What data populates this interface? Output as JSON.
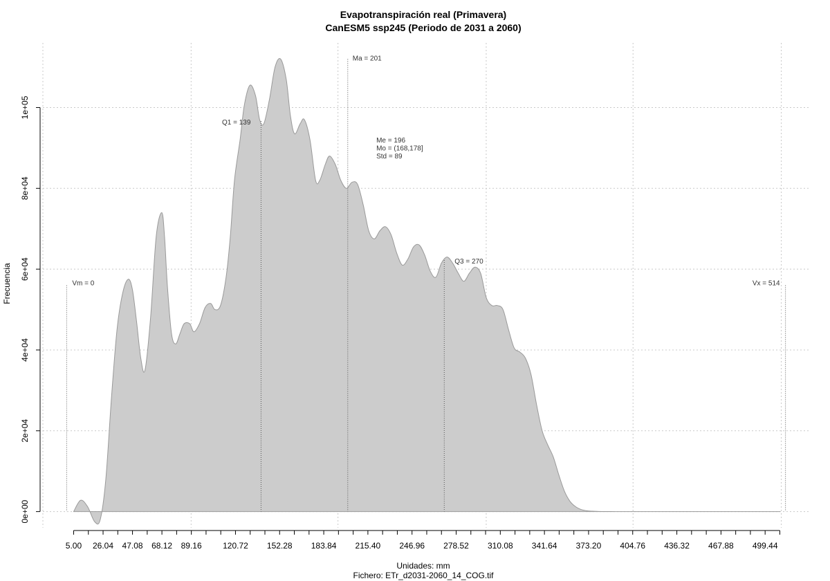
{
  "chart_data": {
    "type": "area",
    "title": "Evapotranspiración real (Primavera)",
    "subtitle": "CanESM5 ssp245 (Periodo de 2031 a 2060)",
    "xlabel": "Unidades: mm",
    "caption": "Fichero: ETr_d2031-2060_14_COG.tif",
    "ylabel": "Frecuencia",
    "xlim": [
      -17,
      531
    ],
    "ylim": [
      -4000,
      116000
    ],
    "grid": true,
    "colors": {
      "fill": "#cccccc",
      "stroke": "#999999"
    },
    "x_ticks": [
      5.0,
      15.52,
      26.04,
      36.56,
      47.08,
      57.6,
      68.12,
      78.64,
      89.16,
      99.68,
      110.2,
      120.72,
      131.24,
      141.76,
      152.28,
      162.8,
      173.32,
      183.84,
      194.36,
      204.88,
      215.4,
      225.92,
      236.44,
      246.96,
      257.48,
      268.0,
      278.52,
      289.04,
      299.56,
      310.08,
      320.6,
      331.12,
      341.64,
      352.16,
      362.68,
      373.2,
      383.72,
      394.24,
      404.76,
      415.28,
      425.8,
      436.32,
      446.84,
      457.36,
      467.88,
      478.4,
      488.92,
      499.44,
      509.96
    ],
    "x_tick_labels": [
      "5.00",
      "26.04",
      "47.08",
      "68.12",
      "89.16",
      "120.72",
      "152.28",
      "183.84",
      "215.40",
      "246.96",
      "278.52",
      "310.08",
      "341.64",
      "373.20",
      "404.76",
      "436.32",
      "467.88",
      "499.44"
    ],
    "x_tick_label_values": [
      5.0,
      26.04,
      47.08,
      68.12,
      89.16,
      120.72,
      152.28,
      183.84,
      215.4,
      246.96,
      278.52,
      310.08,
      341.64,
      373.2,
      404.76,
      436.32,
      467.88,
      499.44
    ],
    "x_grid": [
      -17,
      89,
      194,
      300,
      405,
      511
    ],
    "y_ticks": [
      0,
      20000,
      40000,
      60000,
      80000,
      100000
    ],
    "y_tick_labels": [
      "0e+00",
      "2e+04",
      "4e+04",
      "6e+04",
      "8e+04",
      "1e+05"
    ],
    "density": {
      "x": [
        5,
        10,
        15,
        20,
        24,
        28,
        32,
        36,
        40,
        44,
        47,
        50,
        53,
        56,
        60,
        64,
        68,
        70,
        72,
        75,
        78,
        81,
        84,
        88,
        91,
        95,
        99,
        103,
        106,
        110,
        114,
        117,
        120,
        124,
        127,
        131,
        135,
        138,
        141,
        145,
        149,
        153,
        157,
        160,
        163,
        167,
        170,
        174,
        178,
        181,
        185,
        188,
        192,
        196,
        200,
        204,
        208,
        212,
        216,
        220,
        224,
        228,
        232,
        236,
        240,
        244,
        248,
        252,
        256,
        260,
        264,
        268,
        272,
        276,
        280,
        284,
        288,
        292,
        296,
        300,
        304,
        308,
        312,
        316,
        320,
        324,
        328,
        332,
        336,
        340,
        344,
        348,
        352,
        356,
        360,
        364,
        368,
        372,
        376,
        380,
        384,
        388,
        392,
        396,
        400,
        404,
        408,
        412,
        416,
        420,
        430,
        450,
        480,
        510
      ],
      "y": [
        0,
        2800,
        1200,
        -2500,
        -2000,
        8000,
        28000,
        45000,
        54000,
        57500,
        55000,
        47000,
        38000,
        35000,
        48000,
        68000,
        74000,
        68000,
        56000,
        44000,
        41500,
        44000,
        46500,
        46500,
        44500,
        46500,
        50500,
        51500,
        50000,
        51000,
        58000,
        68000,
        82000,
        92000,
        100500,
        105500,
        103000,
        97000,
        96000,
        102000,
        110000,
        112000,
        107000,
        98000,
        93500,
        96000,
        97000,
        92000,
        82000,
        82000,
        86000,
        88000,
        86000,
        82000,
        80000,
        81500,
        81000,
        76000,
        69500,
        67500,
        69500,
        70500,
        68500,
        64000,
        61000,
        62500,
        65500,
        66000,
        63500,
        59500,
        58000,
        61500,
        63000,
        61500,
        59000,
        57000,
        59000,
        60500,
        59000,
        53000,
        51000,
        51000,
        50000,
        45000,
        40500,
        39500,
        38000,
        34000,
        26500,
        20000,
        16500,
        13500,
        9000,
        5000,
        2500,
        1200,
        500,
        200,
        100,
        50,
        30,
        20,
        10,
        10,
        10,
        10,
        10,
        10,
        10,
        10,
        10,
        10,
        10,
        10
      ],
      "_note_removed": true
    },
    "annotations": [
      {
        "label": "Vm = 0",
        "x": 0
      },
      {
        "label": "Q1 = 139",
        "x": 139
      },
      {
        "label": "Ma = 201",
        "x": 201
      },
      {
        "label": "Q3 = 270",
        "x": 270
      },
      {
        "label": "Vx = 514",
        "x": 514
      }
    ],
    "stats_box": [
      "Me = 196",
      "Mo = (168,178]",
      "Std = 89"
    ],
    "stats_box_x": 215
  }
}
